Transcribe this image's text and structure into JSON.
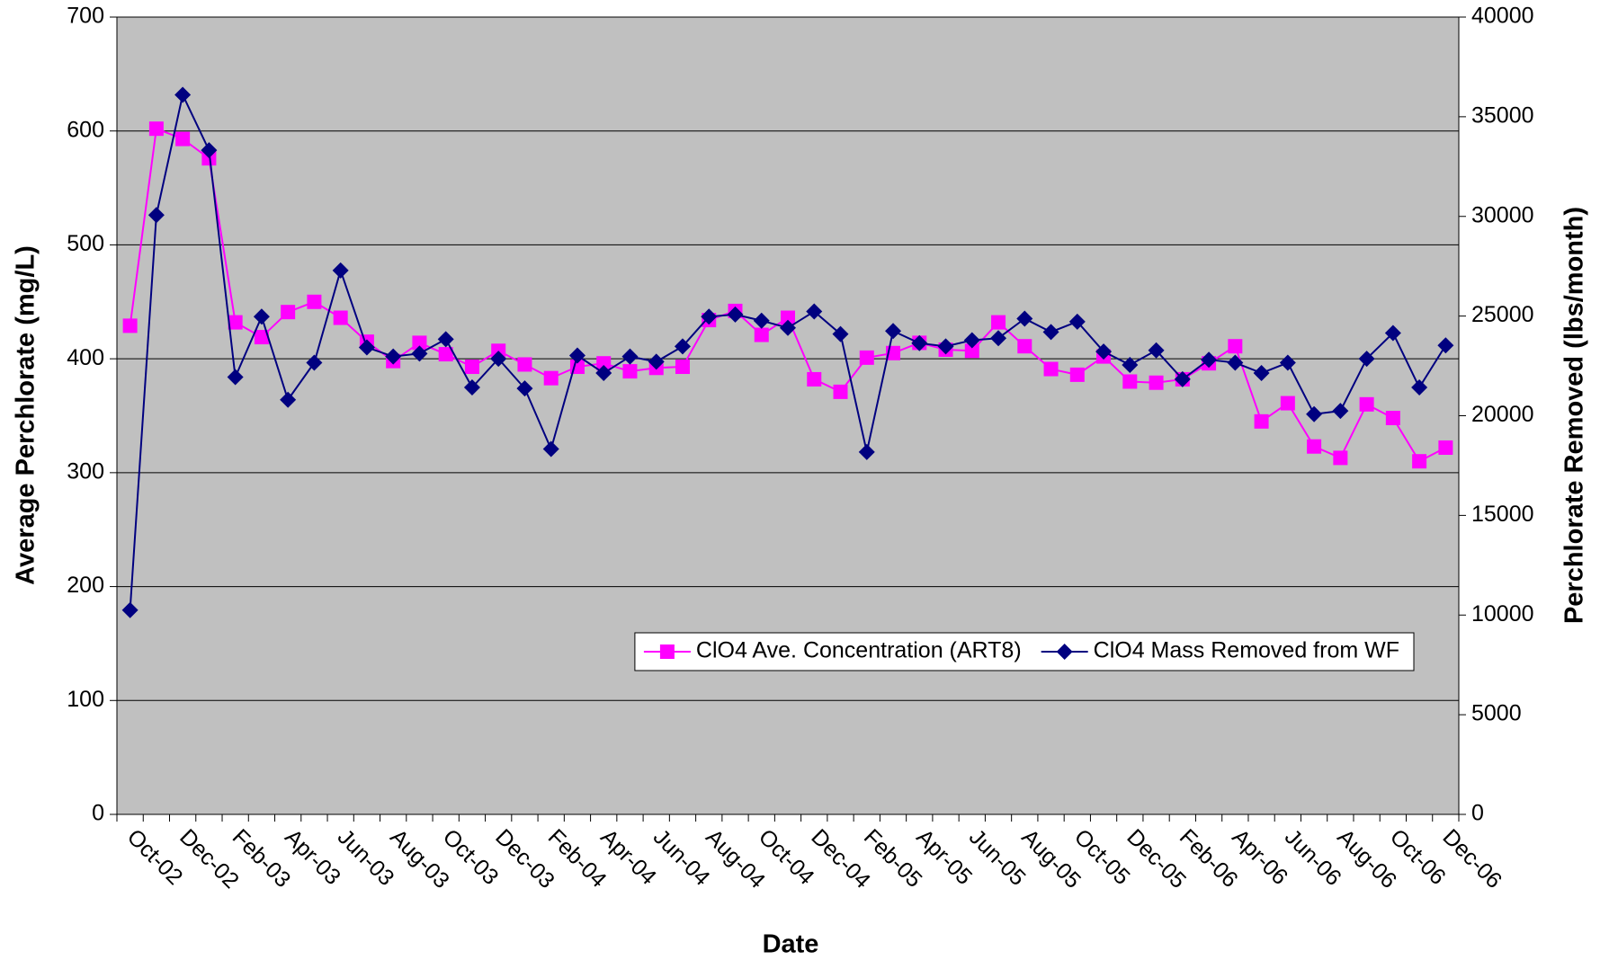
{
  "chart_data": {
    "type": "line",
    "x_label": "Date",
    "y_label": "Average Perchlorate (mg/L)",
    "y2_label": "Perchlorate Removed (lbs/month)",
    "categories": [
      "Oct-02",
      null,
      "Dec-02",
      null,
      "Feb-03",
      null,
      "Apr-03",
      null,
      "Jun-03",
      null,
      "Aug-03",
      null,
      "Oct-03",
      null,
      "Dec-03",
      null,
      "Feb-04",
      null,
      "Apr-04",
      null,
      "Jun-04",
      null,
      "Aug-04",
      null,
      "Oct-04",
      null,
      "Dec-04",
      null,
      "Feb-05",
      null,
      "Apr-05",
      null,
      "Jun-05",
      null,
      "Aug-05",
      null,
      "Oct-05",
      null,
      "Dec-05",
      null,
      "Feb-06",
      null,
      "Apr-06",
      null,
      "Jun-06",
      null,
      "Aug-06",
      null,
      "Oct-06",
      null,
      "Dec-06"
    ],
    "series": [
      {
        "name": "ClO4 Ave. Concentration (ART8)",
        "color": "#ff00ff",
        "marker": "square",
        "values": [
          429,
          602,
          593,
          576,
          432,
          419,
          441,
          450,
          436,
          415,
          398,
          414,
          404,
          393,
          407,
          395,
          383,
          393,
          396,
          389,
          392,
          393,
          434,
          442,
          421,
          436,
          382,
          371,
          401,
          405,
          414,
          408,
          407,
          432,
          411,
          391,
          386,
          402,
          380,
          379,
          382,
          396,
          411,
          345,
          361,
          323,
          313,
          360,
          348,
          310,
          322
        ]
      },
      {
        "name": "ClO4 Mass Removed from WF",
        "color": "#000080",
        "marker": "diamond",
        "axis": "y2",
        "values": [
          10250,
          30070,
          36100,
          33320,
          21940,
          24970,
          20800,
          22660,
          27290,
          23430,
          22970,
          23120,
          23840,
          21420,
          22860,
          21370,
          18330,
          23020,
          22140,
          22970,
          22710,
          23480,
          24970,
          25080,
          24770,
          24410,
          25230,
          24100,
          18180,
          24250,
          23640,
          23480,
          23790,
          23890,
          24870,
          24200,
          24720,
          23220,
          22550,
          23280,
          21830,
          22810,
          22660,
          22140,
          22660,
          20080,
          20240,
          22860,
          24150,
          21420,
          23530
        ]
      }
    ],
    "ylim": [
      0,
      700
    ],
    "yticks": [
      0,
      100,
      200,
      300,
      400,
      500,
      600,
      700
    ],
    "y2lim": [
      0,
      40000
    ],
    "y2ticks": [
      0,
      5000,
      10000,
      15000,
      20000,
      25000,
      30000,
      35000,
      40000
    ],
    "grid": true,
    "plot_background": "#c0c0c0",
    "legend": "bottom-right"
  }
}
